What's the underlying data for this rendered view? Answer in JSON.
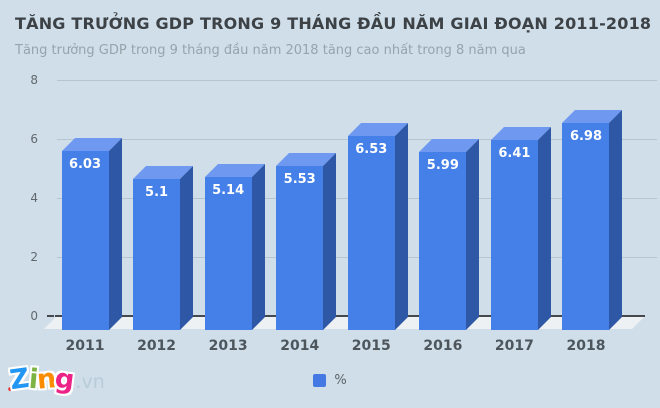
{
  "chart_data": {
    "type": "bar",
    "style": "3d-column",
    "title": "TĂNG TRƯỞNG GDP TRONG 9 THÁNG ĐẦU NĂM GIAI ĐOẠN 2011-2018",
    "subtitle": "Tăng trưởng GDP trong 9 tháng đầu năm 2018 tăng cao nhất trong 8 năm qua",
    "categories": [
      "2011",
      "2012",
      "2013",
      "2014",
      "2015",
      "2016",
      "2017",
      "2018"
    ],
    "series": [
      {
        "name": "%",
        "values": [
          6.03,
          5.1,
          5.14,
          5.53,
          6.53,
          5.99,
          6.41,
          6.98
        ]
      }
    ],
    "value_labels": [
      "6.03",
      "5.1",
      "5.14",
      "5.53",
      "6.53",
      "5.99",
      "6.41",
      "6.98"
    ],
    "xlabel": "",
    "ylabel": "",
    "ylim": [
      0,
      8
    ],
    "yticks": [
      0,
      2,
      4,
      6,
      8
    ],
    "grid": true,
    "legend_position": "bottom-center",
    "colors": {
      "background": "#cfdee9",
      "bar_front": "#4580e8",
      "bar_top": "#6f99f0",
      "bar_side": "#2e57a6",
      "value_label": "#ffffff",
      "gridline": "#b7c5d0",
      "baseline": "#45494d",
      "floor": "#eef1f4"
    }
  },
  "legend": {
    "swatch_color": "#4479e4"
  },
  "branding": {
    "logo_letters": [
      {
        "char": "Z",
        "color": "#2196f3"
      },
      {
        "char": "i",
        "color": "#7cb342"
      },
      {
        "char": "n",
        "color": "#fb8c00"
      },
      {
        "char": "g",
        "color": "#ec2286"
      }
    ],
    "logo_suffix": ".vn",
    "accent_color": "#e53935"
  }
}
